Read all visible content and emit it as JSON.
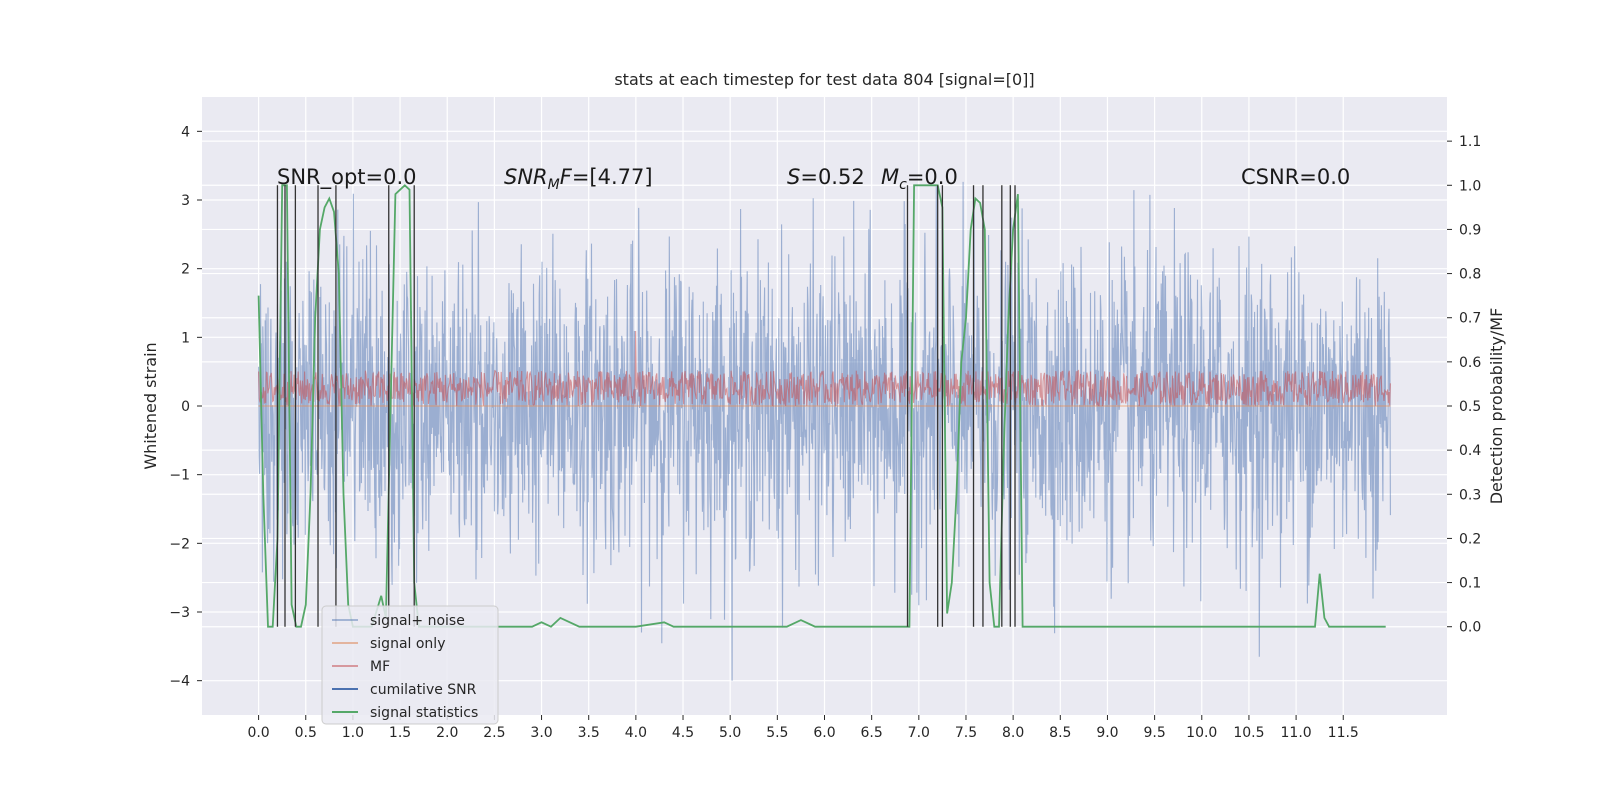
{
  "chart_data": {
    "type": "line",
    "title": "stats at each timestep for test data 804 [signal=[0]]",
    "xlabel": "",
    "ylabel_left": "Whitened strain",
    "ylabel_right": "Detection probability/MF",
    "xlim": [
      -0.6,
      12.6
    ],
    "ylim_left": [
      -4.5,
      4.5
    ],
    "ylim_right": [
      -0.2,
      1.2
    ],
    "x_ticks": [
      0.0,
      0.5,
      1.0,
      1.5,
      2.0,
      2.5,
      3.0,
      3.5,
      4.0,
      4.5,
      5.0,
      5.5,
      6.0,
      6.5,
      7.0,
      7.5,
      8.0,
      8.5,
      9.0,
      9.5,
      10.0,
      10.5,
      11.0,
      11.5
    ],
    "x_tick_labels": [
      "0.0",
      "0.5",
      "1.0",
      "1.5",
      "2.0",
      "2.5",
      "3.0",
      "3.5",
      "4.0",
      "4.5",
      "5.0",
      "5.5",
      "6.0",
      "6.5",
      "7.0",
      "7.5",
      "8.0",
      "8.5",
      "9.0",
      "9.5",
      "10.0",
      "10.5",
      "11.0",
      "11.5"
    ],
    "y_left_ticks": [
      4,
      3,
      2,
      1,
      0,
      -1,
      -2,
      -3,
      -4
    ],
    "y_left_tick_labels": [
      "4",
      "3",
      "2",
      "1",
      "0",
      "−1",
      "−2",
      "−3",
      "−4"
    ],
    "y_right_ticks": [
      1.1,
      1.0,
      0.9,
      0.8,
      0.7,
      0.6,
      0.5,
      0.4,
      0.3,
      0.2,
      0.1,
      0.0
    ],
    "y_right_tick_labels": [
      "1.1",
      "1.0",
      "0.9",
      "0.8",
      "0.7",
      "0.6",
      "0.5",
      "0.4",
      "0.3",
      "0.2",
      "0.1",
      "0.0"
    ],
    "grid": true,
    "legend_position": "lower-left",
    "colors": {
      "background": "#eaeaf2",
      "grid": "#ffffff",
      "signal_noise": "#4c72b0",
      "signal_only": "#dd8452",
      "mf": "#c44e52",
      "cumulative_snr": "#4c72b0",
      "signal_statistics": "#55a868",
      "trigger_lines": "#333333"
    },
    "annotations": [
      {
        "key": "snr_opt",
        "text": "SNR_opt=0.0"
      },
      {
        "key": "snr_mf",
        "text": "SNR_MF=[4.77]"
      },
      {
        "key": "s_val",
        "text": "S=0.52"
      },
      {
        "key": "mc_val",
        "text": "M_c=0.0"
      },
      {
        "key": "csnr",
        "text": "CSNR=0.0"
      }
    ],
    "series": [
      {
        "name": "signal+ noise",
        "axis": "left",
        "style": "noise",
        "x_range": [
          0.0,
          12.0
        ],
        "envelope": {
          "typical_amplitude": 1.1,
          "peak_max": 4.1,
          "trough_min": -4.0
        }
      },
      {
        "name": "signal only",
        "axis": "left",
        "style": "flat",
        "x": [
          0.0,
          12.0
        ],
        "y": [
          0.0,
          0.0
        ]
      },
      {
        "name": "MF",
        "axis": "right",
        "style": "band",
        "x_range": [
          0.0,
          12.0
        ],
        "band": [
          0.5,
          0.58
        ],
        "peak": {
          "x": 4.0,
          "y": 0.67
        }
      },
      {
        "name": "cumilative SNR",
        "axis": "left",
        "style": "flat",
        "x": [],
        "y": []
      },
      {
        "name": "signal statistics",
        "axis": "right",
        "style": "line",
        "x": [
          0.0,
          0.05,
          0.1,
          0.15,
          0.2,
          0.25,
          0.3,
          0.35,
          0.4,
          0.45,
          0.5,
          0.55,
          0.6,
          0.65,
          0.7,
          0.75,
          0.8,
          0.85,
          0.9,
          0.95,
          1.0,
          1.1,
          1.2,
          1.3,
          1.35,
          1.4,
          1.45,
          1.5,
          1.55,
          1.6,
          1.65,
          1.7,
          1.8,
          2.0,
          2.5,
          2.9,
          3.0,
          3.1,
          3.2,
          3.4,
          4.0,
          4.3,
          4.4,
          5.0,
          5.6,
          5.75,
          5.85,
          5.9,
          6.5,
          6.9,
          6.95,
          7.0,
          7.1,
          7.2,
          7.25,
          7.3,
          7.35,
          7.4,
          7.45,
          7.5,
          7.55,
          7.6,
          7.65,
          7.7,
          7.75,
          7.8,
          7.85,
          7.9,
          7.95,
          8.0,
          8.05,
          8.1,
          8.2,
          9.0,
          10.0,
          10.5,
          11.0,
          11.2,
          11.25,
          11.3,
          11.35,
          11.5,
          11.95
        ],
        "y": [
          0.75,
          0.3,
          0.0,
          0.0,
          0.2,
          1.0,
          1.0,
          0.05,
          0.0,
          0.0,
          0.05,
          0.3,
          0.7,
          0.9,
          0.95,
          0.97,
          0.94,
          0.8,
          0.3,
          0.05,
          0.0,
          0.0,
          0.0,
          0.07,
          0.02,
          0.5,
          0.98,
          0.99,
          1.0,
          0.99,
          0.1,
          0.0,
          0.0,
          0.0,
          0.0,
          0.0,
          0.01,
          0.0,
          0.02,
          0.0,
          0.0,
          0.01,
          0.0,
          0.0,
          0.0,
          0.015,
          0.005,
          0.0,
          0.0,
          0.0,
          1.0,
          1.0,
          1.0,
          1.0,
          0.95,
          0.03,
          0.1,
          0.3,
          0.6,
          0.7,
          0.9,
          0.97,
          0.96,
          0.9,
          0.1,
          0.0,
          0.0,
          0.4,
          0.7,
          0.9,
          0.98,
          0.0,
          0.0,
          0.0,
          0.0,
          0.0,
          0.0,
          0.0,
          0.12,
          0.02,
          0.0,
          0.0,
          0.0
        ]
      }
    ],
    "trigger_lines_x": [
      0.2,
      0.28,
      0.39,
      0.63,
      0.82,
      1.38,
      1.65,
      6.88,
      7.2,
      7.25,
      7.58,
      7.68,
      7.88,
      7.97,
      8.02
    ]
  },
  "legend": {
    "items": [
      {
        "label": "signal+ noise",
        "color": "#4c72b0"
      },
      {
        "label": "signal only",
        "color": "#dd8452"
      },
      {
        "label": "MF",
        "color": "#c44e52"
      },
      {
        "label": "cumilative SNR",
        "color": "#4c72b0"
      },
      {
        "label": "signal statistics",
        "color": "#55a868"
      }
    ]
  }
}
